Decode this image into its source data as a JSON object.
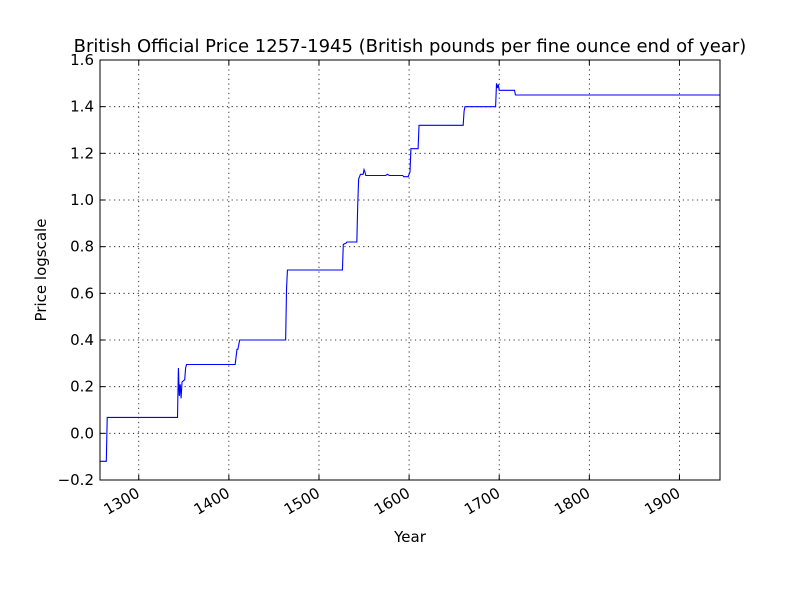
{
  "chart_data": {
    "type": "line",
    "title": "British Official Price 1257-1945 (British pounds per fine ounce end of year)",
    "xlabel": "Year",
    "ylabel": "Price logscale",
    "xlim": [
      1257,
      1945
    ],
    "ylim": [
      -0.2,
      1.6
    ],
    "xticks": [
      1300,
      1400,
      1500,
      1600,
      1700,
      1800,
      1900
    ],
    "yticks": [
      -0.2,
      0.0,
      0.2,
      0.4,
      0.6,
      0.8,
      1.0,
      1.2,
      1.4,
      1.6
    ],
    "ytick_labels": [
      "−0.2",
      "0.0",
      "0.2",
      "0.4",
      "0.6",
      "0.8",
      "1.0",
      "1.2",
      "1.4",
      "1.6"
    ],
    "grid": true,
    "series_color": "#0000ff",
    "series": [
      {
        "x": [
          1257,
          1264,
          1265,
          1343,
          1344,
          1345,
          1346,
          1347,
          1348,
          1351,
          1352,
          1353,
          1407,
          1409,
          1410,
          1411,
          1412,
          1413,
          1463,
          1464,
          1465,
          1526,
          1527,
          1530,
          1531,
          1542,
          1543,
          1544,
          1545,
          1546,
          1549,
          1550,
          1551,
          1552,
          1574,
          1576,
          1578,
          1593,
          1594,
          1599,
          1600,
          1601,
          1602,
          1603,
          1604,
          1610,
          1611,
          1612,
          1619,
          1620,
          1660,
          1661,
          1662,
          1663,
          1664,
          1696,
          1697,
          1698,
          1699,
          1700,
          1717,
          1718,
          1945
        ],
        "y": [
          -0.12,
          -0.12,
          0.068,
          0.068,
          0.28,
          0.16,
          0.21,
          0.15,
          0.22,
          0.23,
          0.28,
          0.295,
          0.295,
          0.36,
          0.36,
          0.38,
          0.4,
          0.4,
          0.4,
          0.62,
          0.7,
          0.7,
          0.81,
          0.815,
          0.82,
          0.82,
          0.98,
          1.09,
          1.1,
          1.11,
          1.11,
          1.13,
          1.12,
          1.105,
          1.105,
          1.11,
          1.105,
          1.105,
          1.1,
          1.1,
          1.11,
          1.12,
          1.22,
          1.22,
          1.22,
          1.22,
          1.32,
          1.32,
          1.32,
          1.32,
          1.32,
          1.38,
          1.4,
          1.4,
          1.4,
          1.4,
          1.5,
          1.48,
          1.495,
          1.47,
          1.47,
          1.45,
          1.45
        ]
      }
    ]
  }
}
